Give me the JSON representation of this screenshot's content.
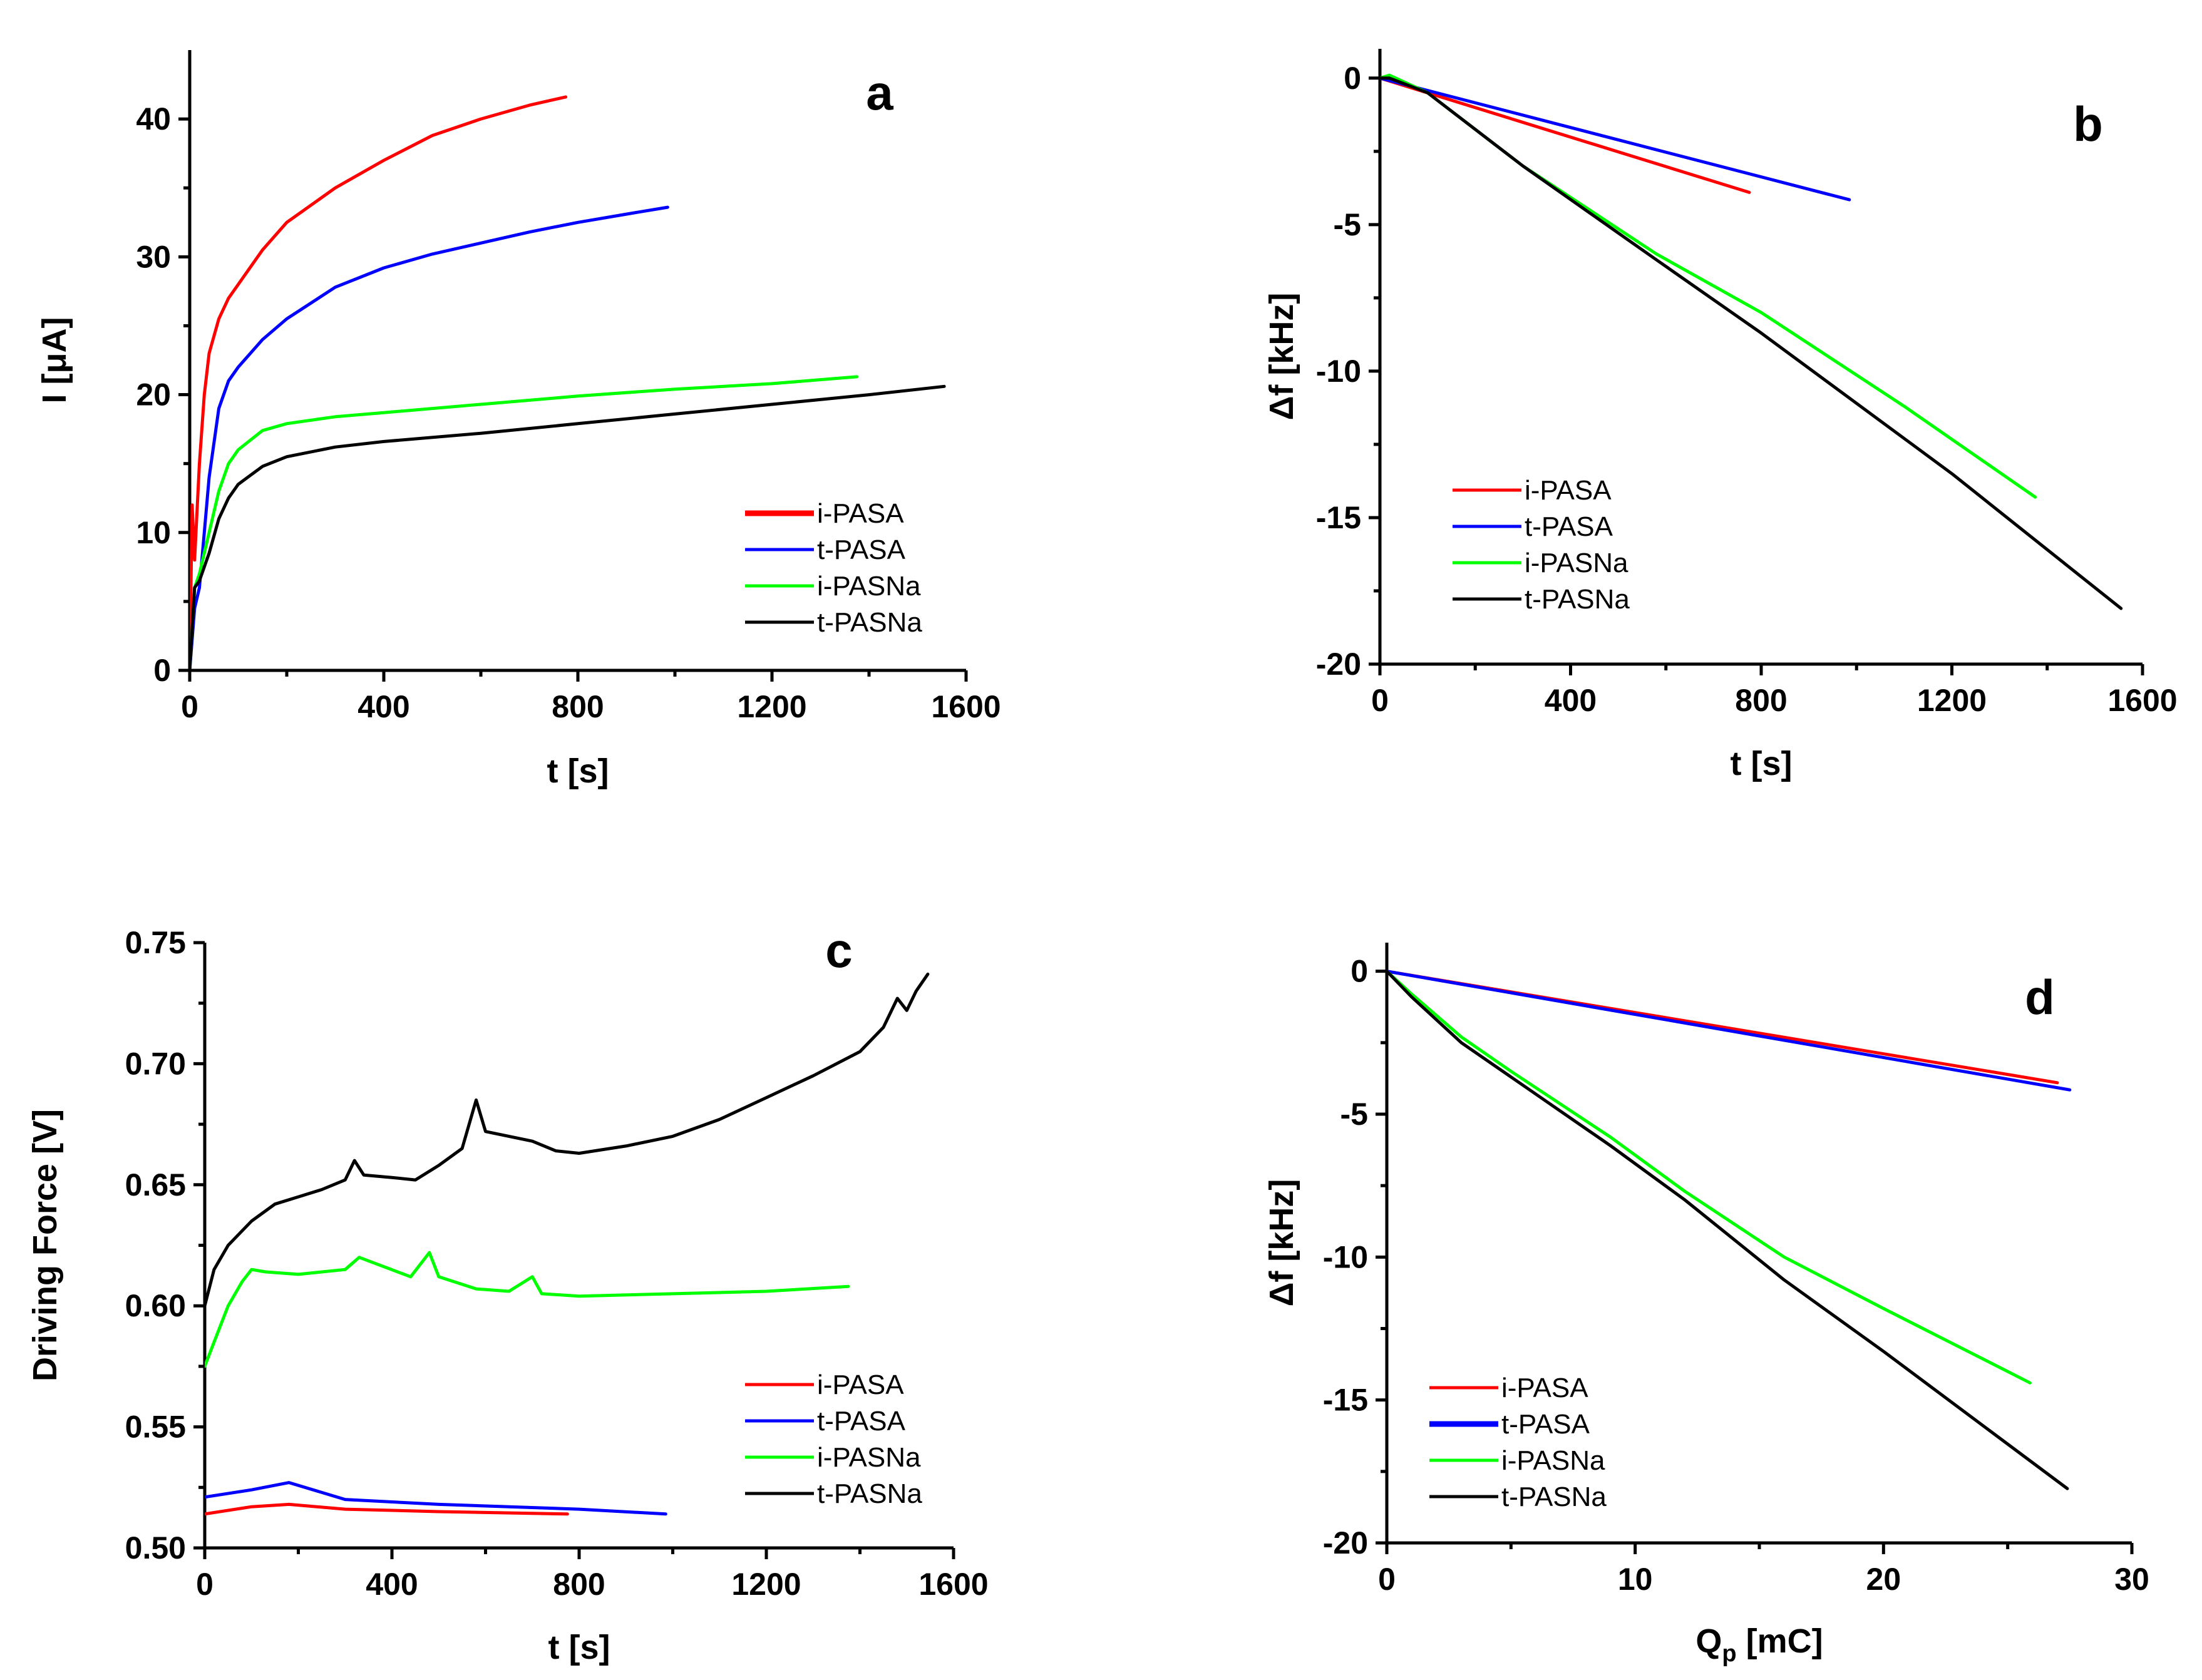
{
  "figure": {
    "colors": {
      "i-PASA": "#ff0000",
      "t-PASA": "#0000ff",
      "i-PASNa": "#00ff00",
      "t-PASNa": "#000000"
    }
  },
  "chart_data": [
    {
      "id": "a",
      "panel_label": "a",
      "type": "line",
      "title": "",
      "xlabel": "t [s]",
      "ylabel": "I [μA]",
      "xlim": [
        0,
        1600
      ],
      "ylim": [
        0,
        45
      ],
      "xticks": [
        0,
        400,
        800,
        1200,
        1600
      ],
      "yticks": [
        0,
        10,
        20,
        30,
        40
      ],
      "legend": {
        "position": "bottom-right",
        "entries": [
          "i-PASA",
          "t-PASA",
          "i-PASNa",
          "t-PASNa"
        ]
      },
      "series": [
        {
          "name": "i-PASA",
          "x": [
            0,
            5,
            10,
            20,
            30,
            40,
            60,
            80,
            100,
            150,
            200,
            300,
            400,
            500,
            600,
            700,
            775
          ],
          "y": [
            0,
            12,
            8,
            15,
            20,
            23,
            25.5,
            27,
            28,
            30.5,
            32.5,
            35,
            37,
            38.8,
            40,
            41,
            41.6
          ]
        },
        {
          "name": "t-PASA",
          "x": [
            0,
            10,
            20,
            30,
            40,
            60,
            80,
            100,
            150,
            200,
            300,
            400,
            500,
            600,
            700,
            800,
            900,
            985
          ],
          "y": [
            0,
            4.5,
            6,
            10,
            14,
            19,
            21,
            22,
            24,
            25.5,
            27.8,
            29.2,
            30.2,
            31,
            31.8,
            32.5,
            33.1,
            33.6
          ]
        },
        {
          "name": "i-PASNa",
          "x": [
            0,
            10,
            20,
            40,
            60,
            80,
            100,
            150,
            200,
            300,
            400,
            600,
            800,
            1000,
            1200,
            1375
          ],
          "y": [
            0,
            6,
            7,
            10,
            13,
            15,
            16,
            17.4,
            17.9,
            18.4,
            18.7,
            19.3,
            19.9,
            20.4,
            20.8,
            21.3
          ]
        },
        {
          "name": "t-PASNa",
          "x": [
            0,
            10,
            20,
            40,
            60,
            80,
            100,
            150,
            200,
            300,
            400,
            600,
            800,
            1000,
            1200,
            1400,
            1555
          ],
          "y": [
            0,
            6,
            6.5,
            8.5,
            11,
            12.5,
            13.5,
            14.8,
            15.5,
            16.2,
            16.6,
            17.2,
            17.9,
            18.6,
            19.3,
            20,
            20.6
          ]
        }
      ]
    },
    {
      "id": "b",
      "panel_label": "b",
      "type": "line",
      "title": "",
      "xlabel": "t [s]",
      "ylabel": "Δf [kHz]",
      "xlim": [
        0,
        1600
      ],
      "ylim": [
        -20,
        1
      ],
      "xticks": [
        0,
        400,
        800,
        1200,
        1600
      ],
      "yticks": [
        0,
        -5,
        -10,
        -15,
        -20
      ],
      "legend": {
        "position": "bottom-left",
        "entries": [
          "i-PASA",
          "t-PASA",
          "i-PASNa",
          "t-PASNa"
        ]
      },
      "series": [
        {
          "name": "i-PASA",
          "x": [
            0,
            775
          ],
          "y": [
            0,
            -3.9
          ]
        },
        {
          "name": "t-PASA",
          "x": [
            0,
            985
          ],
          "y": [
            0,
            -4.15
          ]
        },
        {
          "name": "i-PASNa",
          "x": [
            0,
            20,
            100,
            300,
            580,
            800,
            1100,
            1375
          ],
          "y": [
            0,
            0.1,
            -0.5,
            -3.0,
            -6.0,
            -8.0,
            -11.2,
            -14.3
          ]
        },
        {
          "name": "t-PASNa",
          "x": [
            0,
            20,
            100,
            300,
            580,
            800,
            1200,
            1555
          ],
          "y": [
            0,
            0,
            -0.5,
            -3.0,
            -6.2,
            -8.7,
            -13.5,
            -18.1
          ]
        }
      ]
    },
    {
      "id": "c",
      "panel_label": "c",
      "type": "line",
      "title": "",
      "xlabel": "t [s]",
      "ylabel": "Driving Force [V]",
      "xlim": [
        0,
        1600
      ],
      "ylim": [
        0.5,
        0.75
      ],
      "xticks": [
        0,
        400,
        800,
        1200,
        1600
      ],
      "yticks": [
        0.5,
        0.55,
        0.6,
        0.65,
        0.7,
        0.75
      ],
      "legend": {
        "position": "bottom-right",
        "entries": [
          "i-PASA",
          "t-PASA",
          "i-PASNa",
          "t-PASNa"
        ]
      },
      "series": [
        {
          "name": "i-PASA",
          "x": [
            0,
            100,
            180,
            300,
            500,
            775
          ],
          "y": [
            0.514,
            0.517,
            0.518,
            0.516,
            0.515,
            0.514
          ]
        },
        {
          "name": "t-PASA",
          "x": [
            0,
            100,
            180,
            300,
            500,
            800,
            985
          ],
          "y": [
            0.521,
            0.524,
            0.527,
            0.52,
            0.518,
            0.516,
            0.514
          ]
        },
        {
          "name": "i-PASNa",
          "x": [
            0,
            20,
            50,
            80,
            100,
            130,
            200,
            300,
            330,
            440,
            480,
            500,
            580,
            650,
            700,
            720,
            800,
            1000,
            1200,
            1375
          ],
          "y": [
            0.575,
            0.585,
            0.6,
            0.61,
            0.615,
            0.614,
            0.613,
            0.615,
            0.62,
            0.612,
            0.622,
            0.612,
            0.607,
            0.606,
            0.612,
            0.605,
            0.604,
            0.605,
            0.606,
            0.608
          ]
        },
        {
          "name": "t-PASNa",
          "x": [
            0,
            20,
            50,
            100,
            150,
            200,
            250,
            300,
            320,
            340,
            400,
            450,
            500,
            550,
            580,
            600,
            650,
            700,
            750,
            800,
            900,
            1000,
            1100,
            1200,
            1300,
            1400,
            1450,
            1480,
            1500,
            1520,
            1545
          ],
          "y": [
            0.6,
            0.615,
            0.625,
            0.635,
            0.642,
            0.645,
            0.648,
            0.652,
            0.66,
            0.654,
            0.653,
            0.652,
            0.658,
            0.665,
            0.685,
            0.672,
            0.67,
            0.668,
            0.664,
            0.663,
            0.666,
            0.67,
            0.677,
            0.686,
            0.695,
            0.705,
            0.715,
            0.727,
            0.722,
            0.73,
            0.737
          ]
        }
      ]
    },
    {
      "id": "d",
      "panel_label": "d",
      "type": "line",
      "title": "",
      "xlabel": "Q",
      "xlabel_sub": "p",
      "xlabel_unit": " [mC]",
      "ylabel": "Δf [kHz]",
      "xlim": [
        0,
        30
      ],
      "ylim": [
        -20,
        1
      ],
      "xticks": [
        0,
        10,
        20,
        30
      ],
      "yticks": [
        0,
        -5,
        -10,
        -15,
        -20
      ],
      "legend": {
        "position": "bottom-left",
        "entries": [
          "i-PASA",
          "t-PASA",
          "i-PASNa",
          "t-PASNa"
        ]
      },
      "series": [
        {
          "name": "i-PASA",
          "x": [
            0,
            27
          ],
          "y": [
            0,
            -3.9
          ]
        },
        {
          "name": "t-PASA",
          "x": [
            0,
            27.5
          ],
          "y": [
            0,
            -4.15
          ]
        },
        {
          "name": "i-PASNa",
          "x": [
            0,
            1,
            3,
            5,
            9,
            12,
            16,
            20,
            25.9
          ],
          "y": [
            0,
            -0.8,
            -2.3,
            -3.5,
            -5.8,
            -7.7,
            -10.0,
            -11.8,
            -14.4
          ]
        },
        {
          "name": "t-PASNa",
          "x": [
            0,
            1,
            3,
            6,
            9,
            12,
            16,
            20,
            27.4
          ],
          "y": [
            0,
            -0.9,
            -2.5,
            -4.3,
            -6.1,
            -8.0,
            -10.8,
            -13.3,
            -18.1
          ]
        }
      ]
    }
  ]
}
